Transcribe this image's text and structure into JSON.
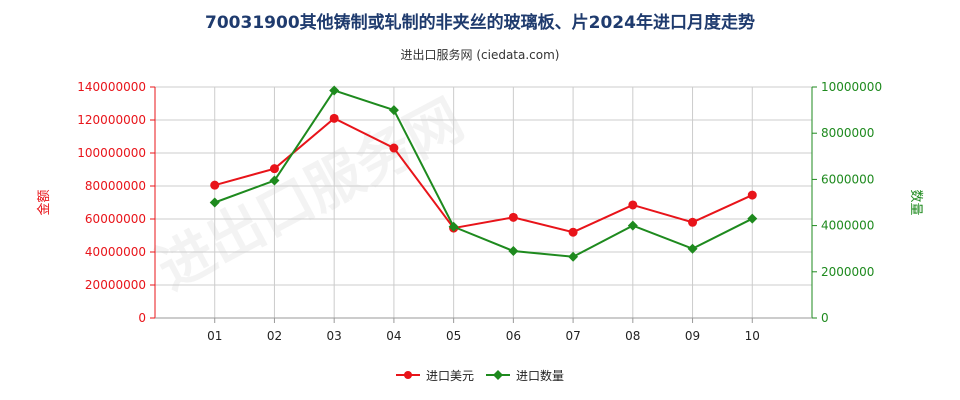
{
  "title": "70031900其他铸制或轧制的非夹丝的玻璃板、片2024年进口月度走势",
  "subtitle": "进出口服务网 (ciedata.com)",
  "watermark": "进出口服务网",
  "colors": {
    "series_amount": "#e8141a",
    "series_qty": "#1e8a1e",
    "left_axis": "#e8141a",
    "right_axis": "#1e8a1e",
    "grid": "#cccccc",
    "title": "#1f3b6e"
  },
  "chart_data": {
    "type": "line",
    "title": "70031900其他铸制或轧制的非夹丝的玻璃板、片2024年进口月度走势",
    "categories": [
      "01",
      "02",
      "03",
      "04",
      "05",
      "06",
      "07",
      "08",
      "09",
      "10"
    ],
    "y_left": {
      "label": "金额",
      "range": [
        0,
        140000000
      ],
      "ticks": [
        "0",
        "20000000",
        "40000000",
        "60000000",
        "80000000",
        "100000000",
        "120000000",
        "140000000"
      ]
    },
    "y_right": {
      "label": "数量",
      "range": [
        0,
        10000000
      ],
      "ticks": [
        "0",
        "2000000",
        "4000000",
        "6000000",
        "8000000",
        "10000000"
      ]
    },
    "series": [
      {
        "name": "进口美元",
        "axis": "left",
        "marker": "circle",
        "values": [
          80500000,
          90500000,
          121000000,
          103000000,
          54500000,
          61000000,
          52000000,
          68500000,
          58000000,
          74500000
        ]
      },
      {
        "name": "进口数量",
        "axis": "right",
        "marker": "diamond",
        "values": [
          5000000,
          5950000,
          9850000,
          9000000,
          3950000,
          2900000,
          2650000,
          4000000,
          3000000,
          4300000
        ]
      }
    ],
    "grid": true,
    "legend": "bottom-center"
  }
}
